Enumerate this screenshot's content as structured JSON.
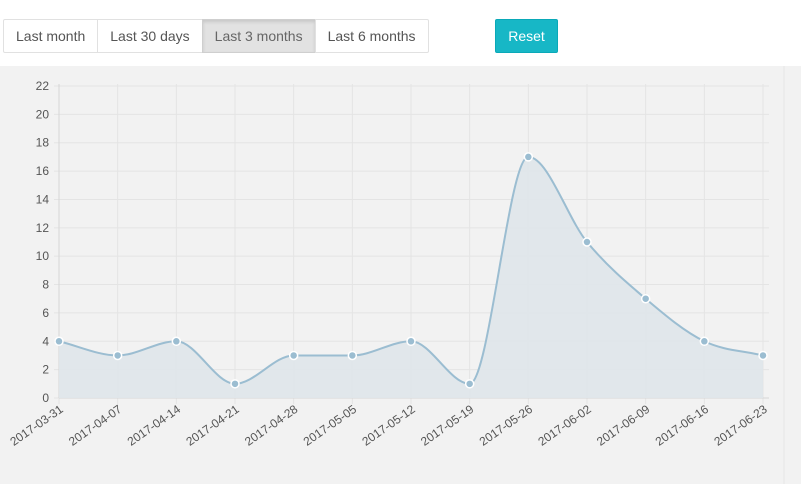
{
  "toolbar": {
    "range_buttons": [
      {
        "label": "Last month",
        "active": false
      },
      {
        "label": "Last 30 days",
        "active": false
      },
      {
        "label": "Last 3 months",
        "active": true
      },
      {
        "label": "Last 6 months",
        "active": false
      }
    ],
    "reset_label": "Reset"
  },
  "colors": {
    "accent": "#17b7c6",
    "line": "#9bbdd1",
    "area": "#dfe6ea",
    "point": "#9bbdd1",
    "background": "#f2f2f2",
    "grid": "#e4e4e4"
  },
  "chart_data": {
    "type": "area",
    "x": [
      "2017-03-31",
      "2017-04-07",
      "2017-04-14",
      "2017-04-21",
      "2017-04-28",
      "2017-05-05",
      "2017-05-12",
      "2017-05-19",
      "2017-05-26",
      "2017-06-02",
      "2017-06-09",
      "2017-06-16",
      "2017-06-23"
    ],
    "series": [
      {
        "values": [
          4,
          3,
          4,
          1,
          3,
          3,
          4,
          1,
          17,
          11,
          7,
          4,
          3
        ]
      }
    ],
    "ylim": [
      0,
      22
    ],
    "yticks": [
      0,
      2,
      4,
      6,
      8,
      10,
      12,
      14,
      16,
      18,
      20,
      22
    ],
    "grid": true,
    "smooth": true,
    "title": "",
    "xlabel": "",
    "ylabel": ""
  }
}
